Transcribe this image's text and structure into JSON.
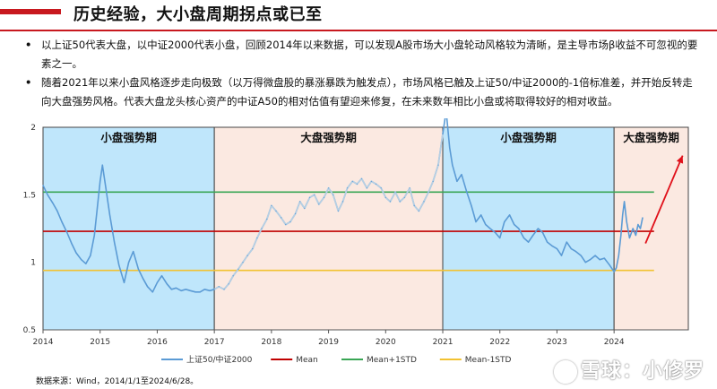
{
  "header": {
    "title": "历史经验，大小盘周期拐点或已至"
  },
  "bullets": [
    "以上证50代表大盘，以中证2000代表小盘，回顾2014年以来数据，可以发现A股市场大小盘轮动风格较为清晰，是主导市场β收益不可忽视的要素之一。",
    "随着2021年以来小盘风格逐步走向极致（以万得微盘股的暴涨暴跌为触发点），市场风格已触及上证50/中证2000的-1倍标准差，并开始反转走向大盘强势风格。代表大盘龙头核心资产的中证A50的相对估值有望迎来修复，在未来数年相比小盘或将取得较好的相对收益。"
  ],
  "source": "数据来源：Wind，2014/1/1至2024/6/28。",
  "watermark": "雪球：小修罗",
  "chart_data": {
    "type": "line",
    "ylim": [
      0.5,
      2.0
    ],
    "xlim": [
      2014.0,
      2025.3
    ],
    "y_ticks": [
      "0.5",
      "1",
      "1.5",
      "2"
    ],
    "x_ticks": [
      "2014",
      "2015",
      "2016",
      "2017",
      "2018",
      "2019",
      "2020",
      "2021",
      "2022",
      "2023",
      "2024"
    ],
    "regions": [
      {
        "label": "小盘强势期",
        "start": 2014.0,
        "end": 2017.0,
        "color": "#bfe6fb"
      },
      {
        "label": "大盘强势期",
        "start": 2017.0,
        "end": 2021.0,
        "color": "#fbe9e1"
      },
      {
        "label": "小盘强势期",
        "start": 2021.0,
        "end": 2024.0,
        "color": "#bfe6fb"
      },
      {
        "label": "大盘强势期",
        "start": 2024.0,
        "end": 2025.3,
        "color": "#fbe9e1"
      }
    ],
    "series": [
      {
        "name": "上证50/中证2000",
        "color": "#5b9bd5",
        "points": [
          [
            2014.0,
            1.57
          ],
          [
            2014.08,
            1.5
          ],
          [
            2014.17,
            1.44
          ],
          [
            2014.25,
            1.38
          ],
          [
            2014.33,
            1.3
          ],
          [
            2014.42,
            1.22
          ],
          [
            2014.5,
            1.14
          ],
          [
            2014.58,
            1.07
          ],
          [
            2014.67,
            1.02
          ],
          [
            2014.75,
            0.99
          ],
          [
            2014.83,
            1.05
          ],
          [
            2014.9,
            1.2
          ],
          [
            2014.95,
            1.4
          ],
          [
            2015.0,
            1.6
          ],
          [
            2015.04,
            1.72
          ],
          [
            2015.1,
            1.55
          ],
          [
            2015.17,
            1.35
          ],
          [
            2015.25,
            1.15
          ],
          [
            2015.33,
            0.98
          ],
          [
            2015.42,
            0.85
          ],
          [
            2015.5,
            1.0
          ],
          [
            2015.58,
            1.08
          ],
          [
            2015.67,
            0.95
          ],
          [
            2015.75,
            0.88
          ],
          [
            2015.83,
            0.82
          ],
          [
            2015.92,
            0.78
          ],
          [
            2016.0,
            0.85
          ],
          [
            2016.08,
            0.9
          ],
          [
            2016.17,
            0.84
          ],
          [
            2016.25,
            0.8
          ],
          [
            2016.33,
            0.81
          ],
          [
            2016.42,
            0.79
          ],
          [
            2016.5,
            0.8
          ],
          [
            2016.58,
            0.79
          ],
          [
            2016.67,
            0.78
          ],
          [
            2016.75,
            0.78
          ],
          [
            2016.83,
            0.8
          ],
          [
            2016.92,
            0.79
          ],
          [
            2017.0,
            0.8
          ],
          [
            2017.08,
            0.82
          ],
          [
            2017.17,
            0.8
          ],
          [
            2017.25,
            0.84
          ],
          [
            2017.33,
            0.9
          ],
          [
            2017.42,
            0.95
          ],
          [
            2017.5,
            1.0
          ],
          [
            2017.58,
            1.05
          ],
          [
            2017.67,
            1.1
          ],
          [
            2017.75,
            1.18
          ],
          [
            2017.83,
            1.25
          ],
          [
            2017.92,
            1.32
          ],
          [
            2018.0,
            1.42
          ],
          [
            2018.08,
            1.38
          ],
          [
            2018.17,
            1.33
          ],
          [
            2018.25,
            1.28
          ],
          [
            2018.33,
            1.3
          ],
          [
            2018.42,
            1.36
          ],
          [
            2018.5,
            1.45
          ],
          [
            2018.58,
            1.4
          ],
          [
            2018.67,
            1.48
          ],
          [
            2018.75,
            1.5
          ],
          [
            2018.83,
            1.43
          ],
          [
            2018.92,
            1.48
          ],
          [
            2019.0,
            1.55
          ],
          [
            2019.08,
            1.5
          ],
          [
            2019.17,
            1.38
          ],
          [
            2019.25,
            1.45
          ],
          [
            2019.33,
            1.55
          ],
          [
            2019.42,
            1.6
          ],
          [
            2019.5,
            1.58
          ],
          [
            2019.58,
            1.62
          ],
          [
            2019.67,
            1.55
          ],
          [
            2019.75,
            1.6
          ],
          [
            2019.83,
            1.58
          ],
          [
            2019.92,
            1.55
          ],
          [
            2020.0,
            1.48
          ],
          [
            2020.08,
            1.45
          ],
          [
            2020.17,
            1.52
          ],
          [
            2020.25,
            1.45
          ],
          [
            2020.33,
            1.48
          ],
          [
            2020.42,
            1.55
          ],
          [
            2020.5,
            1.42
          ],
          [
            2020.58,
            1.38
          ],
          [
            2020.67,
            1.45
          ],
          [
            2020.75,
            1.52
          ],
          [
            2020.83,
            1.6
          ],
          [
            2020.92,
            1.72
          ],
          [
            2021.0,
            1.95
          ],
          [
            2021.06,
            2.12
          ],
          [
            2021.12,
            1.85
          ],
          [
            2021.17,
            1.72
          ],
          [
            2021.25,
            1.6
          ],
          [
            2021.33,
            1.65
          ],
          [
            2021.42,
            1.52
          ],
          [
            2021.5,
            1.42
          ],
          [
            2021.58,
            1.3
          ],
          [
            2021.67,
            1.35
          ],
          [
            2021.75,
            1.28
          ],
          [
            2021.83,
            1.25
          ],
          [
            2021.92,
            1.22
          ],
          [
            2022.0,
            1.18
          ],
          [
            2022.08,
            1.3
          ],
          [
            2022.17,
            1.35
          ],
          [
            2022.25,
            1.28
          ],
          [
            2022.33,
            1.25
          ],
          [
            2022.42,
            1.18
          ],
          [
            2022.5,
            1.15
          ],
          [
            2022.58,
            1.2
          ],
          [
            2022.67,
            1.25
          ],
          [
            2022.75,
            1.22
          ],
          [
            2022.83,
            1.15
          ],
          [
            2022.92,
            1.12
          ],
          [
            2023.0,
            1.1
          ],
          [
            2023.08,
            1.05
          ],
          [
            2023.17,
            1.15
          ],
          [
            2023.25,
            1.1
          ],
          [
            2023.33,
            1.08
          ],
          [
            2023.42,
            1.05
          ],
          [
            2023.5,
            1.0
          ],
          [
            2023.58,
            1.02
          ],
          [
            2023.67,
            1.05
          ],
          [
            2023.75,
            1.02
          ],
          [
            2023.83,
            1.03
          ],
          [
            2023.92,
            0.98
          ],
          [
            2024.0,
            0.93
          ],
          [
            2024.04,
            0.96
          ],
          [
            2024.08,
            1.05
          ],
          [
            2024.12,
            1.2
          ],
          [
            2024.15,
            1.35
          ],
          [
            2024.18,
            1.45
          ],
          [
            2024.22,
            1.3
          ],
          [
            2024.27,
            1.18
          ],
          [
            2024.33,
            1.25
          ],
          [
            2024.38,
            1.2
          ],
          [
            2024.42,
            1.28
          ],
          [
            2024.46,
            1.25
          ],
          [
            2024.5,
            1.33
          ]
        ]
      },
      {
        "name": "Mean",
        "color": "#c00000",
        "constant": 1.23
      },
      {
        "name": "Mean+1STD",
        "color": "#3aa655",
        "constant": 1.52
      },
      {
        "name": "Mean-1STD",
        "color": "#f2c232",
        "constant": 0.94
      }
    ],
    "arrow": {
      "from": [
        2024.55,
        1.14
      ],
      "to": [
        2025.2,
        1.79
      ],
      "color": "#e0101a"
    },
    "legend_position": "bottom"
  }
}
